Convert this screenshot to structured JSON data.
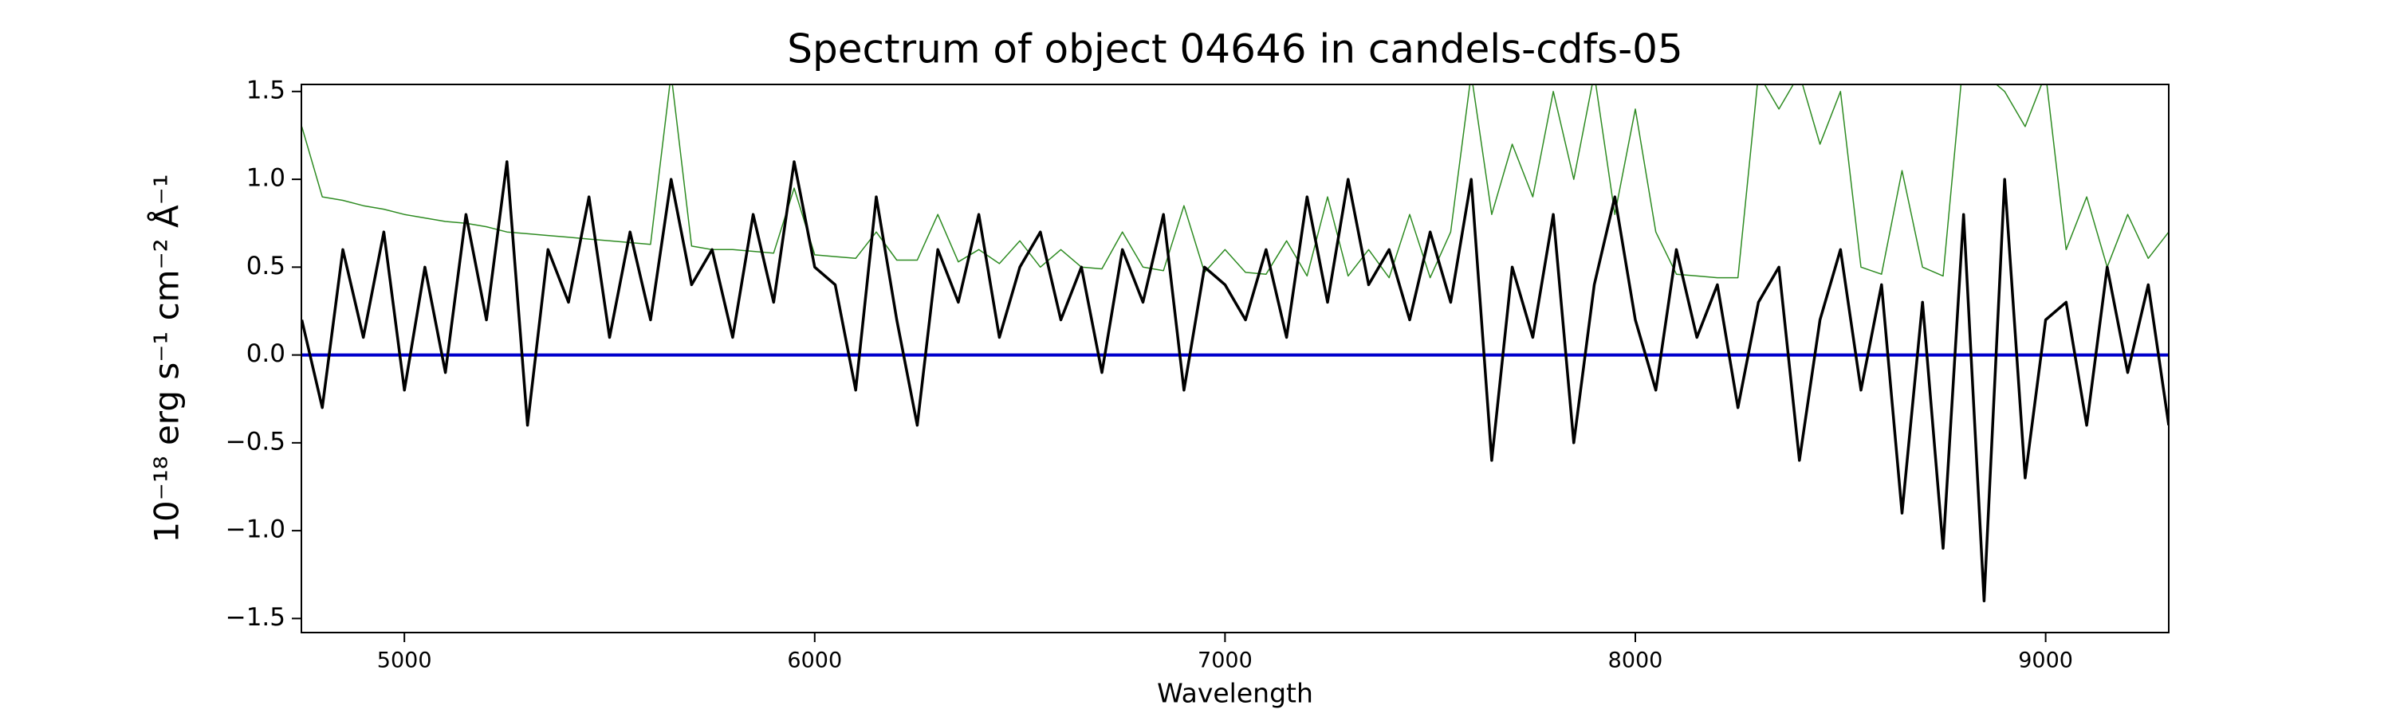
{
  "chart_data": {
    "type": "line",
    "title": "Spectrum of object 04646 in candels-cdfs-05",
    "xlabel": "Wavelength",
    "ylabel": "10⁻¹⁸ erg s⁻¹ cm⁻² Å⁻¹",
    "x": [
      4750,
      4800,
      4850,
      4900,
      4950,
      5000,
      5050,
      5100,
      5150,
      5200,
      5250,
      5300,
      5350,
      5400,
      5450,
      5500,
      5550,
      5600,
      5650,
      5700,
      5750,
      5800,
      5850,
      5900,
      5950,
      6000,
      6050,
      6100,
      6150,
      6200,
      6250,
      6300,
      6350,
      6400,
      6450,
      6500,
      6550,
      6600,
      6650,
      6700,
      6750,
      6800,
      6850,
      6900,
      6950,
      7000,
      7050,
      7100,
      7150,
      7200,
      7250,
      7300,
      7350,
      7400,
      7450,
      7500,
      7550,
      7600,
      7650,
      7700,
      7750,
      7800,
      7850,
      7900,
      7950,
      8000,
      8050,
      8100,
      8150,
      8200,
      8250,
      8300,
      8350,
      8400,
      8450,
      8500,
      8550,
      8600,
      8650,
      8700,
      8750,
      8800,
      8850,
      8900,
      8950,
      9000,
      9050,
      9100,
      9150,
      9200,
      9250,
      9300
    ],
    "series": [
      {
        "color": "#2e8b22",
        "width": 1.5,
        "values": [
          1.3,
          0.9,
          0.88,
          0.85,
          0.83,
          0.8,
          0.78,
          0.76,
          0.75,
          0.73,
          0.7,
          0.69,
          0.68,
          0.67,
          0.66,
          0.65,
          0.64,
          0.63,
          1.6,
          0.62,
          0.6,
          0.6,
          0.59,
          0.58,
          0.95,
          0.57,
          0.56,
          0.55,
          0.7,
          0.54,
          0.54,
          0.8,
          0.53,
          0.6,
          0.52,
          0.65,
          0.5,
          0.6,
          0.5,
          0.49,
          0.7,
          0.5,
          0.48,
          0.85,
          0.47,
          0.6,
          0.47,
          0.46,
          0.65,
          0.45,
          0.9,
          0.45,
          0.6,
          0.44,
          0.8,
          0.44,
          0.7,
          1.6,
          0.8,
          1.2,
          0.9,
          1.5,
          1.0,
          1.6,
          0.8,
          1.4,
          0.7,
          0.46,
          0.45,
          0.44,
          0.44,
          1.6,
          1.4,
          1.6,
          1.2,
          1.5,
          0.5,
          0.46,
          1.05,
          0.5,
          0.45,
          1.7,
          1.6,
          1.5,
          1.3,
          1.6,
          0.6,
          0.9,
          0.5,
          0.8,
          0.55,
          0.7
        ]
      },
      {
        "color": "#0000cc",
        "width": 4,
        "values": [
          0,
          0,
          0,
          0,
          0,
          0,
          0,
          0,
          0,
          0,
          0,
          0,
          0,
          0,
          0,
          0,
          0,
          0,
          0,
          0,
          0,
          0,
          0,
          0,
          0,
          0,
          0,
          0,
          0,
          0,
          0,
          0,
          0,
          0,
          0,
          0,
          0,
          0,
          0,
          0,
          0,
          0,
          0,
          0,
          0,
          0,
          0,
          0,
          0,
          0,
          0,
          0,
          0,
          0,
          0,
          0,
          0,
          0,
          0,
          0,
          0,
          0,
          0,
          0,
          0,
          0,
          0,
          0,
          0,
          0,
          0,
          0,
          0,
          0,
          0,
          0,
          0,
          0,
          0,
          0,
          0,
          0,
          0,
          0,
          0,
          0,
          0,
          0,
          0,
          0,
          0,
          0
        ]
      },
      {
        "color": "#000000",
        "width": 3.5,
        "values": [
          0.2,
          -0.3,
          0.6,
          0.1,
          0.7,
          -0.2,
          0.5,
          -0.1,
          0.8,
          0.2,
          1.1,
          -0.4,
          0.6,
          0.3,
          0.9,
          0.1,
          0.7,
          0.2,
          1.0,
          0.4,
          0.6,
          0.1,
          0.8,
          0.3,
          1.1,
          0.5,
          0.4,
          -0.2,
          0.9,
          0.2,
          -0.4,
          0.6,
          0.3,
          0.8,
          0.1,
          0.5,
          0.7,
          0.2,
          0.5,
          -0.1,
          0.6,
          0.3,
          0.8,
          -0.2,
          0.5,
          0.4,
          0.2,
          0.6,
          0.1,
          0.9,
          0.3,
          1.0,
          0.4,
          0.6,
          0.2,
          0.7,
          0.3,
          1.0,
          -0.6,
          0.5,
          0.1,
          0.8,
          -0.5,
          0.4,
          0.9,
          0.2,
          -0.2,
          0.6,
          0.1,
          0.4,
          -0.3,
          0.3,
          0.5,
          -0.6,
          0.2,
          0.6,
          -0.2,
          0.4,
          -0.9,
          0.3,
          -1.1,
          0.8,
          -1.4,
          1.0,
          -0.7,
          0.2,
          0.3,
          -0.4,
          0.5,
          -0.1,
          0.4,
          -0.4
        ]
      }
    ],
    "xlim": [
      4749,
      9300
    ],
    "ylim": [
      -1.58,
      1.54
    ],
    "xticks": [
      5000,
      6000,
      7000,
      8000,
      9000
    ],
    "yticks": [
      {
        "value": -1.5,
        "label": "−1.5"
      },
      {
        "value": -1,
        "label": "−1.0"
      },
      {
        "value": -0.5,
        "label": "−0.5"
      },
      {
        "value": 0,
        "label": "0.0"
      },
      0.5,
      {
        "value": 1,
        "label": "1.0"
      },
      1.5
    ]
  }
}
